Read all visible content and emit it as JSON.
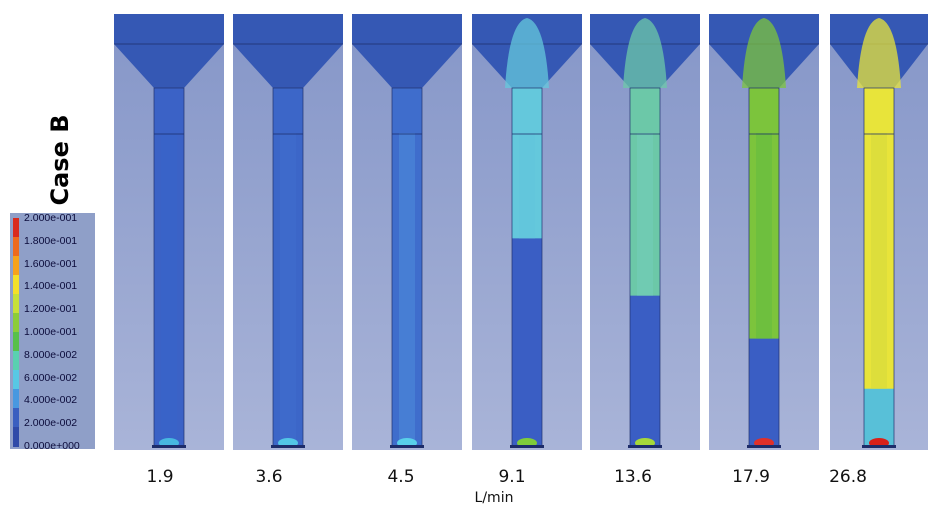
{
  "figure": {
    "case_label": "Case B",
    "unit_label": "L/min"
  },
  "legend": {
    "ticks": [
      "2.000e-001",
      "1.800e-001",
      "1.600e-001",
      "1.400e-001",
      "1.200e-001",
      "1.000e-001",
      "8.000e-002",
      "6.000e-002",
      "4.000e-002",
      "2.000e-002",
      "0.000e+000"
    ],
    "colors": [
      "#d92b1e",
      "#ee6a1e",
      "#f6a21c",
      "#f4e02a",
      "#c6e03a",
      "#8ccc3a",
      "#58c04a",
      "#5ad0b0",
      "#58c8e4",
      "#4898e0",
      "#3a5fc0",
      "#2f4aa8"
    ]
  },
  "colors": {
    "panel_background": "#8f9fc8",
    "funnel": "#3558b4",
    "low_field": "#3a5ec4"
  },
  "panels": [
    {
      "flow_rate": "1.9",
      "body_color": "#3b62c6",
      "core_color": "#3a64c8",
      "lower_color": "#3b62c6",
      "front_fraction": 0.0,
      "tip_color": "#47b8e0"
    },
    {
      "flow_rate": "3.6",
      "body_color": "#3c66c8",
      "core_color": "#3e6ccc",
      "lower_color": "#3c66c8",
      "front_fraction": 0.0,
      "tip_color": "#52c6e6"
    },
    {
      "flow_rate": "4.5",
      "body_color": "#3f6dcc",
      "core_color": "#4a82d6",
      "lower_color": "#3f6dcc",
      "front_fraction": 0.0,
      "tip_color": "#58d0ea"
    },
    {
      "flow_rate": "9.1",
      "body_color": "#64c8dc",
      "core_color": "#62c6dc",
      "lower_color": "#3a5ec4",
      "front_fraction": 0.42,
      "tip_color": "#7fcc3a"
    },
    {
      "flow_rate": "13.6",
      "body_color": "#6cc8a8",
      "core_color": "#72ccb4",
      "lower_color": "#3a5ec4",
      "front_fraction": 0.58,
      "tip_color": "#a6d83a"
    },
    {
      "flow_rate": "17.9",
      "body_color": "#7cc43c",
      "core_color": "#6abe3e",
      "lower_color": "#3a5ec4",
      "front_fraction": 0.7,
      "tip_color": "#e0302a"
    },
    {
      "flow_rate": "26.8",
      "body_color": "#e8e43a",
      "core_color": "#dadc3c",
      "lower_color": "#58c0d8",
      "front_fraction": 0.84,
      "tip_color": "#d8201a"
    }
  ]
}
